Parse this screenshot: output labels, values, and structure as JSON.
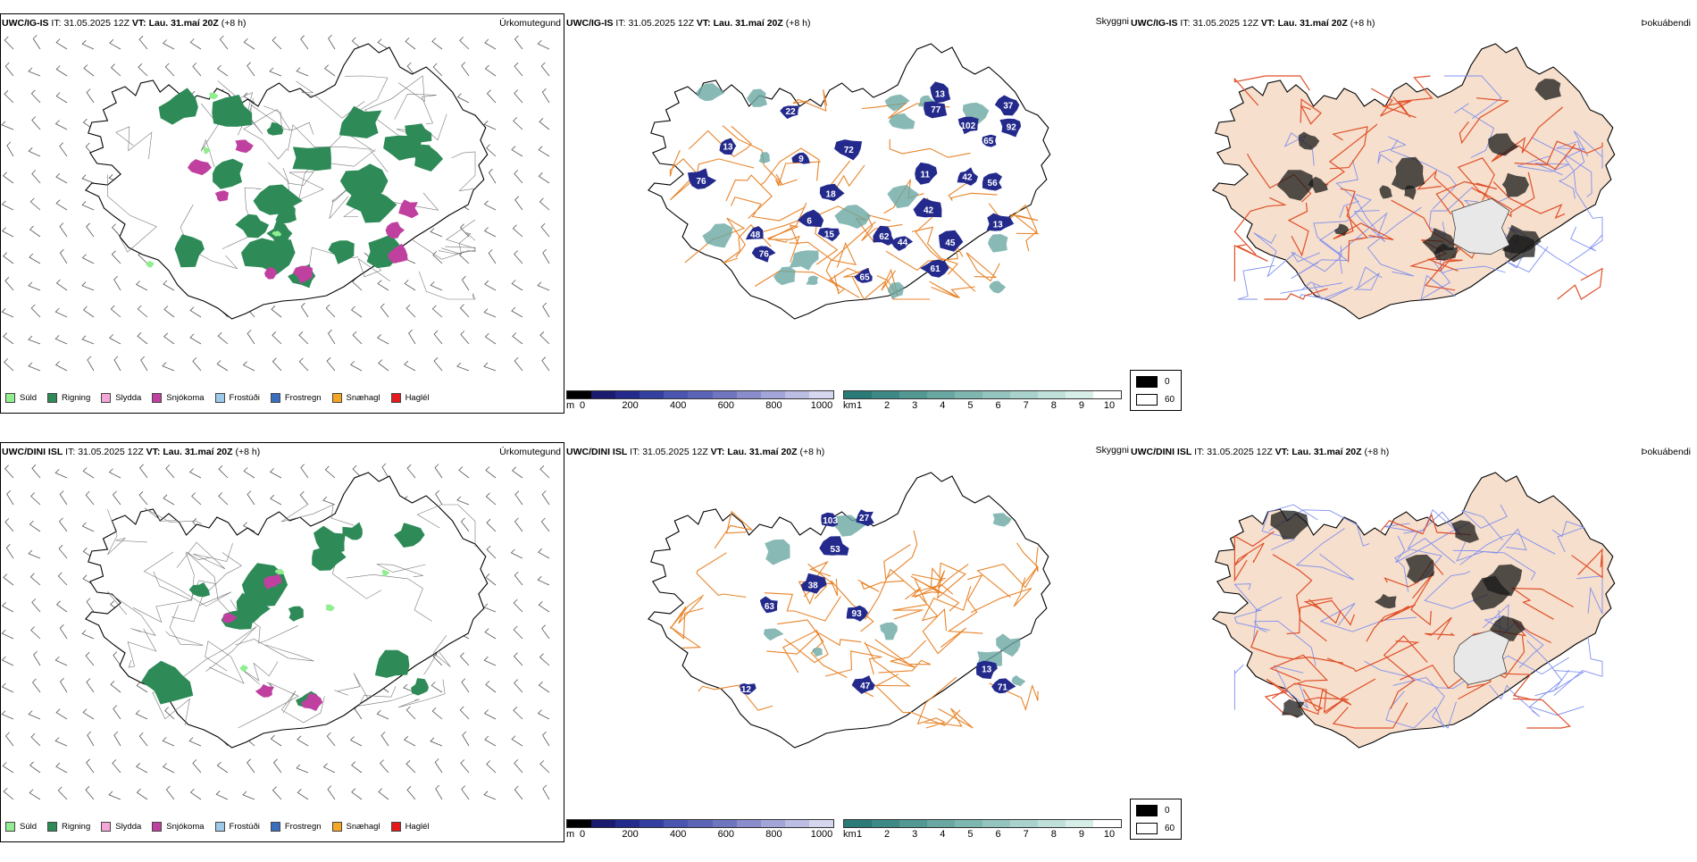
{
  "colors": {
    "land_fill": "#f6dfcc",
    "coast": "#000000",
    "road_orange": "#e8842a",
    "road_red": "#e0502a",
    "river_blue": "#8090f0",
    "precip_green": "#2e8b57",
    "precip_light": "#90ee90",
    "precip_pink": "#c040a0",
    "cloud_dark": "#000000",
    "cloud_light": "#ffffff"
  },
  "precip_legend": [
    {
      "label": "Súld",
      "color": "#90ee90"
    },
    {
      "label": "Rigning",
      "color": "#2e8b57"
    },
    {
      "label": "Slydda",
      "color": "#f4a6d7"
    },
    {
      "label": "Snjókoma",
      "color": "#c040a0"
    },
    {
      "label": "Frostúði",
      "color": "#9ecae9"
    },
    {
      "label": "Frostregn",
      "color": "#3a6fbf"
    },
    {
      "label": "Snæhagl",
      "color": "#f5a623"
    },
    {
      "label": "Haglél",
      "color": "#e41a1c"
    }
  ],
  "cloudbase_bar": {
    "unit": "m",
    "ticks": [
      "0",
      "200",
      "400",
      "600",
      "800",
      "1000"
    ],
    "colors": [
      "#000000",
      "#1a1a6e",
      "#232a8c",
      "#3340a0",
      "#4a55b0",
      "#5c64b8",
      "#7075c0",
      "#8a8ccc",
      "#a3a5d8",
      "#bcbde3",
      "#d6d7ee"
    ]
  },
  "visibility_bar": {
    "unit": "km",
    "ticks": [
      "1",
      "2",
      "3",
      "4",
      "5",
      "6",
      "7",
      "8",
      "9",
      "10"
    ],
    "colors": [
      "#2a7a78",
      "#3d8985",
      "#529893",
      "#68a7a2",
      "#7eb6b0",
      "#94c4be",
      "#aad2cc",
      "#c0e0da",
      "#d6ede8",
      "#ffffff"
    ]
  },
  "cloud_key": {
    "dark_label": "0",
    "light_label": "60"
  },
  "rows": [
    {
      "model": "UWC/IG-IS",
      "it_label": "IT:",
      "it_value": "31.05.2025 12Z",
      "vt_label": "VT:",
      "vt_value": "Lau. 31.maí 20Z",
      "lead": "(+8 h)",
      "precip_title": "Úrkomutegund",
      "vis_title": "Skyggni",
      "fog_title": "Þokuábendi",
      "cloudbase_labels": [
        "92",
        "65",
        "65",
        "62",
        "13",
        "18",
        "15",
        "6",
        "44",
        "11",
        "37",
        "102",
        "77",
        "13",
        "22",
        "13",
        "56",
        "76",
        "76",
        "61",
        "42",
        "42",
        "45",
        "72",
        "48",
        "9"
      ]
    },
    {
      "model": "UWC/DINI ISL",
      "it_label": "IT:",
      "it_value": "31.05.2025 12Z",
      "vt_label": "VT:",
      "vt_value": "Lau. 31.maí 20Z",
      "lead": "(+8 h)",
      "precip_title": "Úrkomutegund",
      "vis_title": "Skyggni",
      "fog_title": "Þokuábendi",
      "cloudbase_labels": [
        "13",
        "47",
        "63",
        "103",
        "27",
        "71",
        "12",
        "93",
        "53",
        "38"
      ]
    }
  ]
}
